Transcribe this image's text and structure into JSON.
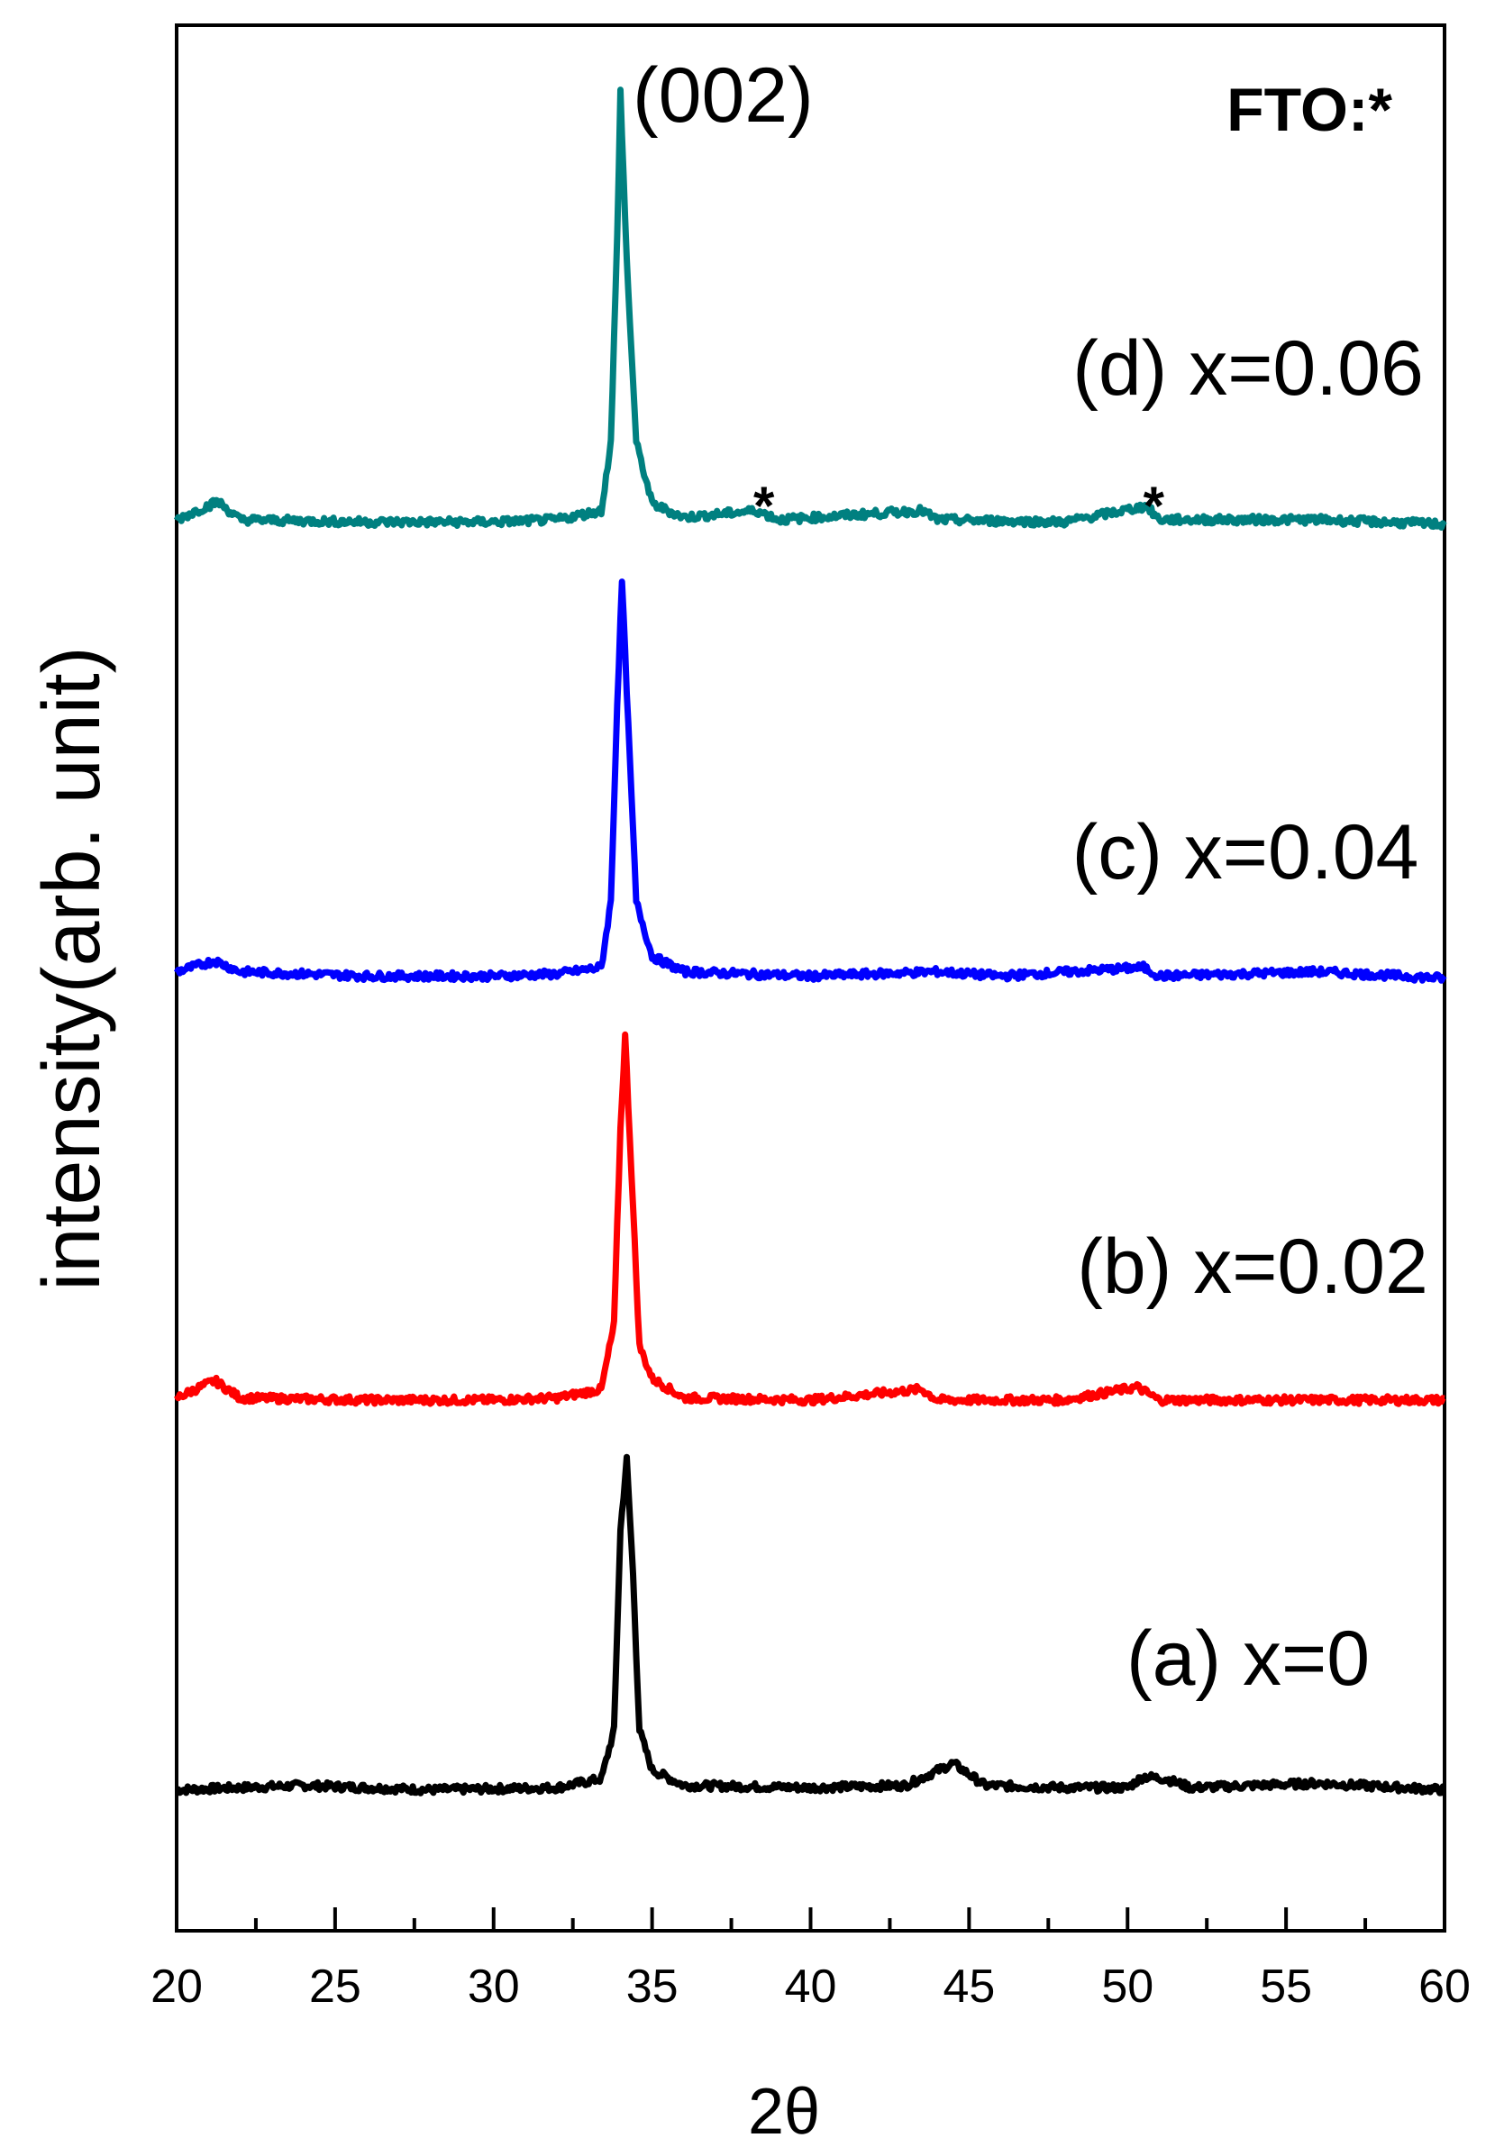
{
  "chart_data": {
    "type": "line",
    "xlabel": "2θ",
    "ylabel": "intensity(arb. unit)",
    "xlim": [
      20,
      60
    ],
    "xticks": [
      20,
      25,
      30,
      35,
      40,
      45,
      50,
      55,
      60
    ],
    "x_minor_step": 2.5,
    "y_ticks_shown": false,
    "legend_note": "FTO:*",
    "peak_annotation": "(002)",
    "star_marker": "*",
    "stars_x": [
      38.3,
      50.6
    ],
    "series": [
      {
        "name": "(a) x=0",
        "color": "#000000",
        "points": [
          [
            20,
            0.3
          ],
          [
            24,
            0.5
          ],
          [
            28,
            0.3
          ],
          [
            32,
            0.4
          ],
          [
            33.4,
            0.8
          ],
          [
            33.8,
            3
          ],
          [
            34.0,
            12
          ],
          [
            34.2,
            15.2
          ],
          [
            34.4,
            10
          ],
          [
            34.6,
            3
          ],
          [
            35,
            1.2
          ],
          [
            36,
            0.5
          ],
          [
            40,
            0.4
          ],
          [
            43,
            0.5
          ],
          [
            44.5,
            1.5
          ],
          [
            45.5,
            0.5
          ],
          [
            48,
            0.4
          ],
          [
            50,
            0.4
          ],
          [
            50.5,
            0.9
          ],
          [
            51.2,
            0.8
          ],
          [
            52,
            0.4
          ],
          [
            56,
            0.6
          ],
          [
            60,
            0.3
          ]
        ]
      },
      {
        "name": "(b) x=0.02",
        "color": "#ff0000",
        "points": [
          [
            20,
            0.6
          ],
          [
            21.2,
            1.4
          ],
          [
            22,
            0.6
          ],
          [
            26,
            0.5
          ],
          [
            30,
            0.5
          ],
          [
            32,
            0.6
          ],
          [
            33.4,
            1.0
          ],
          [
            33.8,
            4
          ],
          [
            34.0,
            13
          ],
          [
            34.15,
            17.3
          ],
          [
            34.35,
            11
          ],
          [
            34.6,
            3
          ],
          [
            35,
            1.5
          ],
          [
            36,
            0.6
          ],
          [
            40,
            0.5
          ],
          [
            43.5,
            1.0
          ],
          [
            44,
            0.5
          ],
          [
            48,
            0.5
          ],
          [
            50.3,
            1.1
          ],
          [
            51,
            0.5
          ],
          [
            55,
            0.5
          ],
          [
            60,
            0.5
          ]
        ]
      },
      {
        "name": "(c) x=0.04",
        "color": "#0000ff",
        "points": [
          [
            20,
            0.8
          ],
          [
            21.2,
            1.3
          ],
          [
            22,
            0.8
          ],
          [
            26,
            0.6
          ],
          [
            30,
            0.6
          ],
          [
            32,
            0.7
          ],
          [
            33.4,
            1.0
          ],
          [
            33.7,
            4
          ],
          [
            33.9,
            13
          ],
          [
            34.05,
            18.6
          ],
          [
            34.25,
            12
          ],
          [
            34.5,
            4
          ],
          [
            35,
            1.5
          ],
          [
            36,
            0.8
          ],
          [
            40,
            0.6
          ],
          [
            44,
            0.8
          ],
          [
            46,
            0.6
          ],
          [
            50.5,
            1.0
          ],
          [
            51,
            0.6
          ],
          [
            56,
            0.8
          ],
          [
            60,
            0.5
          ]
        ]
      },
      {
        "name": "(d) x=0.06",
        "color": "#008080",
        "points": [
          [
            20,
            0.6
          ],
          [
            21.3,
            1.4
          ],
          [
            22,
            0.6
          ],
          [
            26,
            0.5
          ],
          [
            30,
            0.5
          ],
          [
            32,
            0.6
          ],
          [
            33.4,
            1.0
          ],
          [
            33.7,
            4
          ],
          [
            33.9,
            13
          ],
          [
            34.0,
            19.4
          ],
          [
            34.2,
            12
          ],
          [
            34.5,
            4
          ],
          [
            35,
            1.3
          ],
          [
            36,
            0.7
          ],
          [
            38.3,
            1.0
          ],
          [
            39,
            0.6
          ],
          [
            43.5,
            1.0
          ],
          [
            44,
            0.6
          ],
          [
            48,
            0.5
          ],
          [
            50.6,
            1.2
          ],
          [
            51,
            0.6
          ],
          [
            56,
            0.6
          ],
          [
            60,
            0.4
          ]
        ]
      }
    ]
  }
}
